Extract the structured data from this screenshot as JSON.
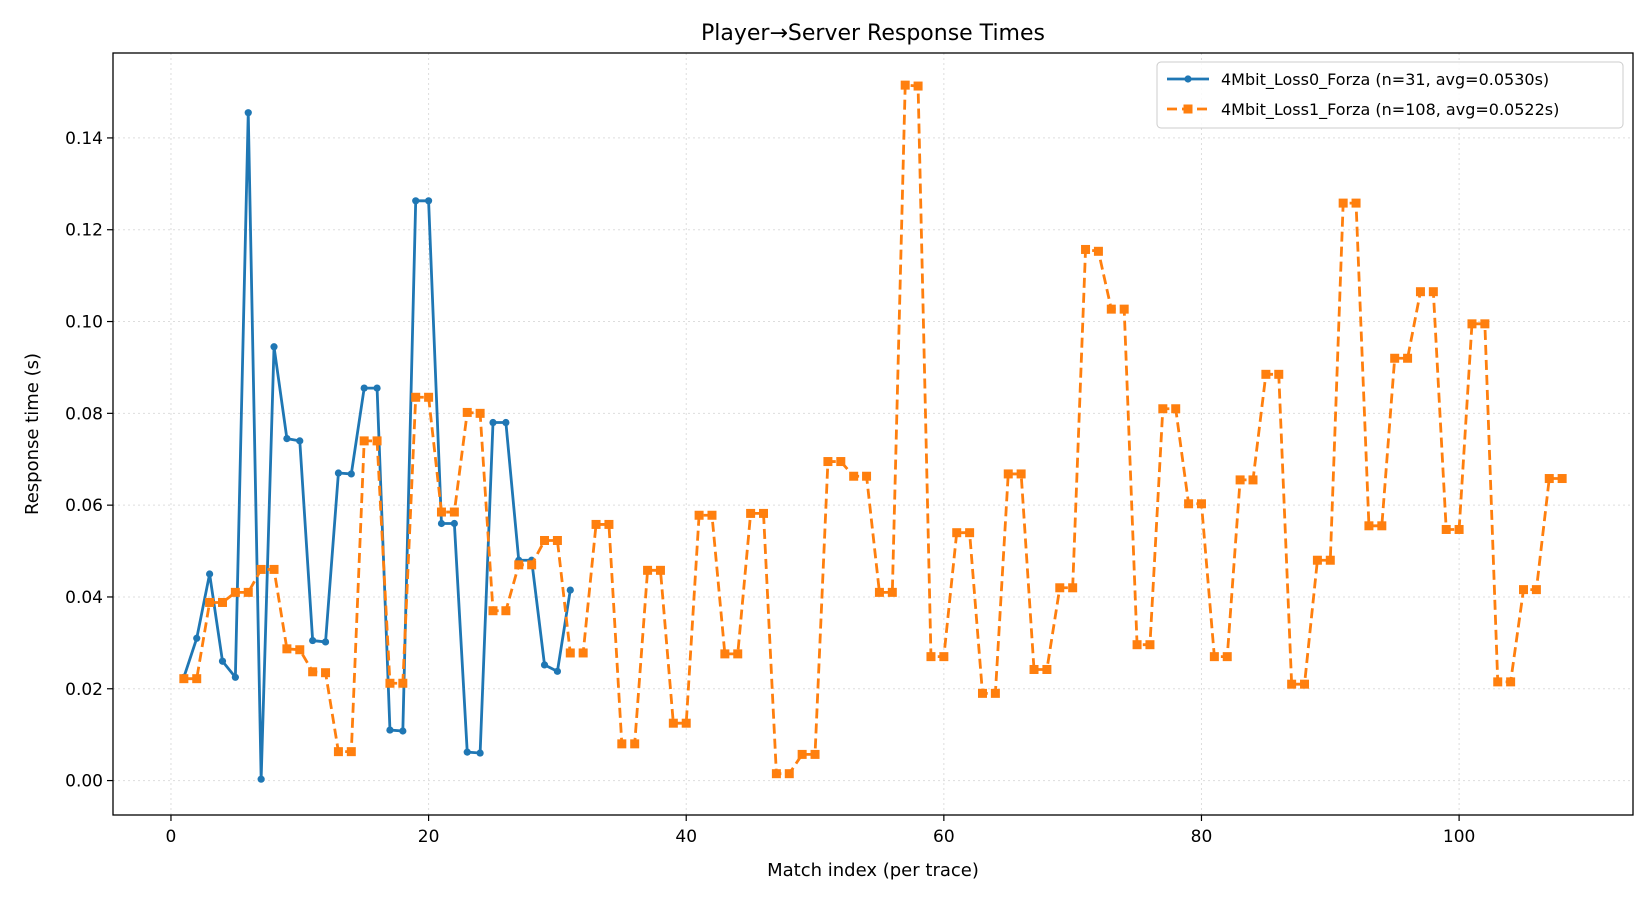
{
  "chart_data": {
    "type": "line",
    "title": "Player→Server Response Times",
    "xlabel": "Match index (per trace)",
    "ylabel": "Response time (s)",
    "xlim": [
      -4.5,
      113.5
    ],
    "ylim": [
      -0.0075,
      0.1585
    ],
    "xticks": [
      0,
      20,
      40,
      60,
      80,
      100
    ],
    "yticks": [
      0.0,
      0.02,
      0.04,
      0.06,
      0.08,
      0.1,
      0.12,
      0.14
    ],
    "ytick_labels": [
      "0.00",
      "0.02",
      "0.04",
      "0.06",
      "0.08",
      "0.10",
      "0.12",
      "0.14"
    ],
    "grid": true,
    "legend_position": "top-right",
    "series": [
      {
        "name": "4Mbit_Loss0_Forza (n=31, avg=0.0530s)",
        "color": "#1f77b4",
        "line_style": "solid",
        "marker": "circle",
        "x": [
          1,
          2,
          3,
          4,
          5,
          6,
          7,
          8,
          9,
          10,
          11,
          12,
          13,
          14,
          15,
          16,
          17,
          18,
          19,
          20,
          21,
          22,
          23,
          24,
          25,
          26,
          27,
          28,
          29,
          30,
          31
        ],
        "y": [
          0.0225,
          0.031,
          0.045,
          0.026,
          0.0225,
          0.1455,
          0.0003,
          0.0945,
          0.0745,
          0.074,
          0.0305,
          0.0302,
          0.067,
          0.0668,
          0.0855,
          0.0855,
          0.011,
          0.0108,
          0.1263,
          0.1263,
          0.056,
          0.056,
          0.0062,
          0.006,
          0.078,
          0.078,
          0.048,
          0.048,
          0.0252,
          0.0238,
          0.0415
        ]
      },
      {
        "name": "4Mbit_Loss1_Forza (n=108, avg=0.0522s)",
        "color": "#ff7f0e",
        "line_style": "dashed",
        "marker": "square",
        "x": [
          1,
          2,
          3,
          4,
          5,
          6,
          7,
          8,
          9,
          10,
          11,
          12,
          13,
          14,
          15,
          16,
          17,
          18,
          19,
          20,
          21,
          22,
          23,
          24,
          25,
          26,
          27,
          28,
          29,
          30,
          31,
          32,
          33,
          34,
          35,
          36,
          37,
          38,
          39,
          40,
          41,
          42,
          43,
          44,
          45,
          46,
          47,
          48,
          49,
          50,
          51,
          52,
          53,
          54,
          55,
          56,
          57,
          58,
          59,
          60,
          61,
          62,
          63,
          64,
          65,
          66,
          67,
          68,
          69,
          70,
          71,
          72,
          73,
          74,
          75,
          76,
          77,
          78,
          79,
          80,
          81,
          82,
          83,
          84,
          85,
          86,
          87,
          88,
          89,
          90,
          91,
          92,
          93,
          94,
          95,
          96,
          97,
          98,
          99,
          100,
          101,
          102,
          103,
          104,
          105,
          106,
          107,
          108
        ],
        "y": [
          0.0222,
          0.0222,
          0.0388,
          0.0388,
          0.041,
          0.041,
          0.046,
          0.046,
          0.0287,
          0.0285,
          0.0237,
          0.0235,
          0.0063,
          0.0063,
          0.074,
          0.074,
          0.0212,
          0.0212,
          0.0835,
          0.0835,
          0.0585,
          0.0585,
          0.0802,
          0.08,
          0.037,
          0.037,
          0.047,
          0.047,
          0.0523,
          0.0523,
          0.0278,
          0.0278,
          0.0558,
          0.0558,
          0.008,
          0.008,
          0.0458,
          0.0458,
          0.0125,
          0.0125,
          0.0578,
          0.0578,
          0.0276,
          0.0276,
          0.0582,
          0.0582,
          0.0015,
          0.0015,
          0.0057,
          0.0057,
          0.0695,
          0.0695,
          0.0663,
          0.0663,
          0.041,
          0.041,
          0.1515,
          0.1513,
          0.027,
          0.027,
          0.054,
          0.054,
          0.019,
          0.019,
          0.0668,
          0.0668,
          0.0242,
          0.0242,
          0.042,
          0.042,
          0.1157,
          0.1153,
          0.1027,
          0.1027,
          0.0296,
          0.0296,
          0.081,
          0.081,
          0.0603,
          0.0603,
          0.027,
          0.027,
          0.0655,
          0.0655,
          0.0885,
          0.0885,
          0.021,
          0.021,
          0.048,
          0.048,
          0.1258,
          0.1258,
          0.0555,
          0.0555,
          0.092,
          0.092,
          0.1065,
          0.1065,
          0.0547,
          0.0547,
          0.0995,
          0.0995,
          0.0215,
          0.0215,
          0.0416,
          0.0416,
          0.0658,
          0.0658
        ]
      }
    ]
  }
}
